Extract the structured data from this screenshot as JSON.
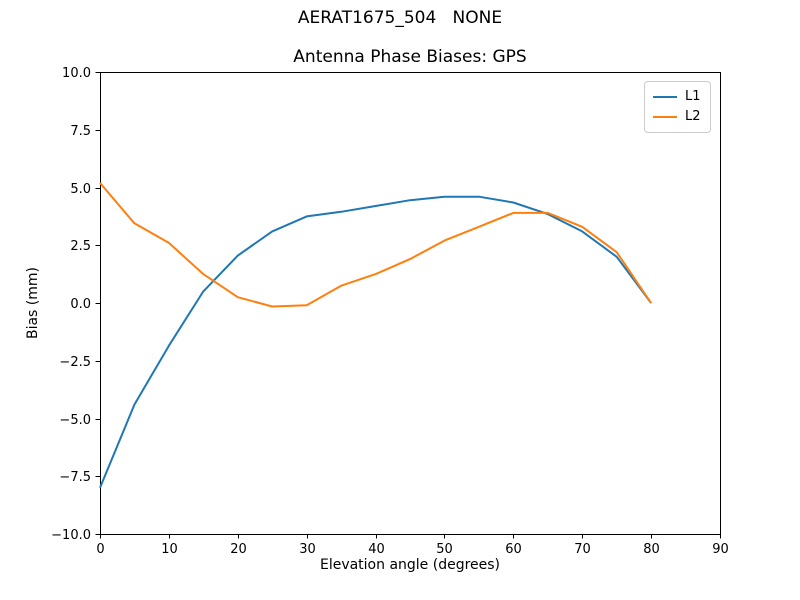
{
  "figure": {
    "suptitle": "AERAT1675_504   NONE"
  },
  "chart_data": {
    "type": "line",
    "suptitle": "AERAT1675_504   NONE",
    "title": "Antenna Phase Biases: GPS",
    "xlabel": "Elevation angle (degrees)",
    "ylabel": "Bias (mm)",
    "xlim": [
      0,
      90
    ],
    "ylim": [
      -10,
      10
    ],
    "grid": false,
    "legend_position": "upper right",
    "background": "#ffffff",
    "spine_color": "#000000",
    "x": [
      0,
      5,
      10,
      15,
      20,
      25,
      30,
      35,
      40,
      45,
      50,
      55,
      60,
      65,
      70,
      75,
      80
    ],
    "series": [
      {
        "name": "L1",
        "color": "#1f77b4",
        "values": [
          -8.0,
          -4.4,
          -1.85,
          0.5,
          2.05,
          3.1,
          3.75,
          3.95,
          4.2,
          4.45,
          4.6,
          4.6,
          4.35,
          3.85,
          3.1,
          2.0,
          0.0
        ]
      },
      {
        "name": "L2",
        "color": "#ff7f0e",
        "values": [
          5.2,
          3.45,
          2.6,
          1.25,
          0.25,
          -0.15,
          -0.1,
          0.75,
          1.25,
          1.9,
          2.7,
          3.3,
          3.9,
          3.9,
          3.3,
          2.2,
          0.0
        ]
      }
    ],
    "xticks": {
      "values": [
        0,
        10,
        20,
        30,
        40,
        50,
        60,
        70,
        80,
        90
      ],
      "labels": [
        "0",
        "10",
        "20",
        "30",
        "40",
        "50",
        "60",
        "70",
        "80",
        "90"
      ]
    },
    "yticks": {
      "values": [
        10,
        7.5,
        5,
        2.5,
        0,
        -2.5,
        -5,
        -7.5,
        -10
      ],
      "labels": [
        "10.0",
        "7.5",
        "5.0",
        "2.5",
        "0.0",
        "−2.5",
        "−5.0",
        "−7.5",
        "−10.0"
      ]
    }
  }
}
